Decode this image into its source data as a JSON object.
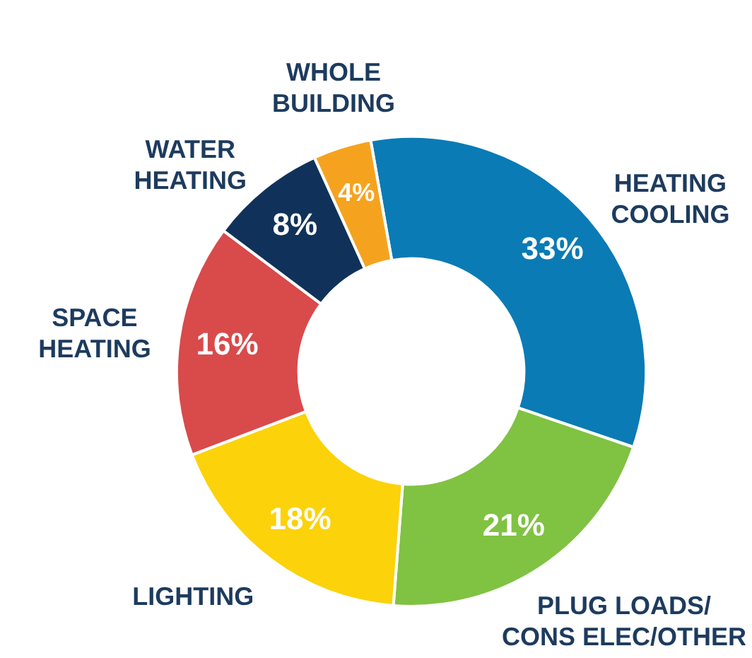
{
  "chart_data": {
    "type": "donut",
    "categories": [
      "HEATING\nCOOLING",
      "PLUG LOADS/\nCONS ELEC/OTHER",
      "LIGHTING",
      "SPACE\nHEATING",
      "WATER\nHEATING",
      "WHOLE\nBUILDING"
    ],
    "values": [
      33,
      21,
      18,
      16,
      8,
      4
    ],
    "value_labels": [
      "33%",
      "21%",
      "18%",
      "16%",
      "8%",
      "4%"
    ],
    "colors": [
      "#0a7bb5",
      "#80c242",
      "#fcd20a",
      "#d94a4b",
      "#10325a",
      "#f5a31f"
    ],
    "legend": false
  }
}
